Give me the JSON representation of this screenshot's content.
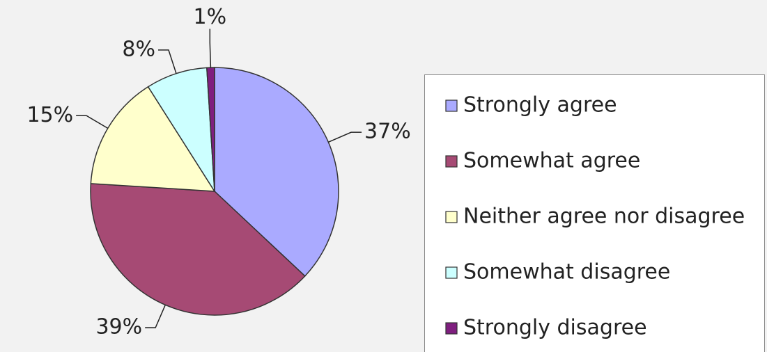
{
  "chart_data": {
    "type": "pie",
    "categories": [
      "Strongly agree",
      "Somewhat agree",
      "Neither agree nor disagree",
      "Somewhat disagree",
      "Strongly disagree"
    ],
    "values": [
      37,
      39,
      15,
      8,
      1
    ],
    "value_labels": [
      "37%",
      "39%",
      "15%",
      "8%",
      "1%"
    ],
    "colors": [
      "#aaaaff",
      "#a64a74",
      "#ffffcc",
      "#ccffff",
      "#7f1f7f"
    ],
    "legend": "right"
  }
}
